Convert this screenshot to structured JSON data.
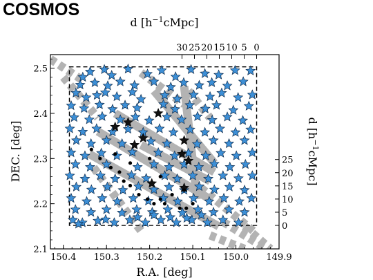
{
  "chart_data": {
    "type": "scatter",
    "title": "COSMOS",
    "xlabel": "R.A. [deg]",
    "ylabel": "DEC. [deg]",
    "top_xlabel": "d [h⁻¹cMpc]",
    "right_ylabel": "d [h⁻¹cMpc]",
    "xlim": [
      150.43,
      149.9
    ],
    "ylim": [
      2.1,
      2.53
    ],
    "xticks": [
      150.4,
      150.3,
      150.2,
      150.1,
      150.0,
      149.9
    ],
    "xtick_labels": [
      "150.4",
      "150.3",
      "150.2",
      "150.1",
      "150.0",
      "149.9"
    ],
    "yticks": [
      2.1,
      2.2,
      2.3,
      2.4,
      2.5
    ],
    "ytick_labels": [
      "2.1",
      "2.2",
      "2.3",
      "2.4",
      "2.5"
    ],
    "top_ticks_mpc": [
      30,
      25,
      20,
      15,
      10,
      5,
      0
    ],
    "top_tick_labels": [
      "30",
      "25",
      "20",
      "15",
      "10",
      "5",
      "0"
    ],
    "right_ticks_mpc": [
      0,
      5,
      10,
      15,
      20,
      25
    ],
    "right_tick_labels": [
      "0",
      "5",
      "10",
      "15",
      "20",
      "25"
    ],
    "mpc_per_deg_x": 173.4,
    "mpc_per_deg_y": 171.4,
    "mpc_zero_ra": 149.952,
    "mpc_zero_dec": 2.152,
    "survey_box": {
      "ra": [
        150.386,
        149.952
      ],
      "dec": [
        2.152,
        2.503
      ]
    },
    "filaments": [
      {
        "ra": [
          150.34,
          150.04
        ],
        "dec": [
          2.31,
          2.15
        ],
        "style": "solid"
      },
      {
        "ra": [
          150.32,
          150.06
        ],
        "dec": [
          2.36,
          2.21
        ],
        "style": "solid"
      },
      {
        "ra": [
          150.28,
          150.05
        ],
        "dec": [
          2.4,
          2.27
        ],
        "style": "solid"
      },
      {
        "ra": [
          150.22,
          150.06
        ],
        "dec": [
          2.33,
          2.25
        ],
        "style": "solid"
      },
      {
        "ra": [
          150.19,
          150.05
        ],
        "dec": [
          2.45,
          2.29
        ],
        "style": "solid"
      },
      {
        "ra": [
          150.12,
          150.09
        ],
        "dec": [
          2.46,
          2.21
        ],
        "style": "solid"
      },
      {
        "ra": [
          150.43,
          150.35
        ],
        "dec": [
          2.52,
          2.47
        ],
        "style": "dashed"
      },
      {
        "ra": [
          150.4,
          150.32
        ],
        "dec": [
          2.48,
          2.39
        ],
        "style": "dashed"
      },
      {
        "ra": [
          150.33,
          150.22
        ],
        "dec": [
          2.28,
          2.14
        ],
        "style": "dashed"
      },
      {
        "ra": [
          150.22,
          150.12
        ],
        "dec": [
          2.49,
          2.42
        ],
        "style": "dashed"
      },
      {
        "ra": [
          150.1,
          149.96
        ],
        "dec": [
          2.25,
          2.14
        ],
        "style": "dashed"
      },
      {
        "ra": [
          150.03,
          149.93
        ],
        "dec": [
          2.16,
          2.1
        ],
        "style": "dashed"
      },
      {
        "ra": [
          149.98,
          149.92
        ],
        "dec": [
          2.15,
          2.1
        ],
        "style": "dashed"
      },
      {
        "ra": [
          150.06,
          149.98
        ],
        "dec": [
          2.13,
          2.1
        ],
        "style": "dashed"
      },
      {
        "ra": [
          150.11,
          150.06
        ],
        "dec": [
          2.45,
          2.39
        ],
        "style": "dashed"
      }
    ],
    "black_points": [
      [
        150.335,
        2.32
      ],
      [
        150.315,
        2.3
      ],
      [
        150.29,
        2.28
      ],
      [
        150.27,
        2.27
      ],
      [
        150.26,
        2.25
      ],
      [
        150.245,
        2.24
      ],
      [
        150.225,
        2.22
      ],
      [
        150.205,
        2.21
      ],
      [
        150.19,
        2.2
      ],
      [
        150.175,
        2.21
      ],
      [
        150.165,
        2.2
      ],
      [
        150.148,
        2.22
      ],
      [
        150.13,
        2.19
      ],
      [
        150.115,
        2.19
      ],
      [
        150.1,
        2.2
      ],
      [
        150.12,
        2.23
      ],
      [
        150.175,
        2.26
      ],
      [
        150.2,
        2.3
      ],
      [
        150.245,
        2.29
      ],
      [
        150.28,
        2.31
      ]
    ],
    "black_stars": [
      [
        150.25,
        2.38
      ],
      [
        150.215,
        2.345
      ],
      [
        150.235,
        2.33
      ],
      [
        150.12,
        2.34
      ],
      [
        150.125,
        2.31
      ],
      [
        150.11,
        2.295
      ],
      [
        150.195,
        2.245
      ],
      [
        150.12,
        2.235
      ],
      [
        150.28,
        2.37
      ],
      [
        150.18,
        2.4
      ]
    ],
    "blue_stars": [
      [
        150.355,
        2.48
      ],
      [
        150.338,
        2.492
      ],
      [
        150.305,
        2.497
      ],
      [
        150.288,
        2.484
      ],
      [
        150.25,
        2.498
      ],
      [
        150.205,
        2.487
      ],
      [
        150.172,
        2.495
      ],
      [
        150.14,
        2.481
      ],
      [
        150.104,
        2.497
      ],
      [
        150.072,
        2.488
      ],
      [
        150.04,
        2.485
      ],
      [
        150.002,
        2.495
      ],
      [
        149.966,
        2.494
      ],
      [
        150.361,
        2.463
      ],
      [
        150.327,
        2.468
      ],
      [
        150.297,
        2.461
      ],
      [
        150.268,
        2.47
      ],
      [
        150.235,
        2.462
      ],
      [
        150.19,
        2.47
      ],
      [
        150.151,
        2.458
      ],
      [
        150.121,
        2.468
      ],
      [
        150.085,
        2.462
      ],
      [
        150.056,
        2.468
      ],
      [
        150.02,
        2.461
      ],
      [
        149.983,
        2.47
      ],
      [
        150.371,
        2.445
      ],
      [
        150.347,
        2.435
      ],
      [
        150.322,
        2.44
      ],
      [
        150.303,
        2.446
      ],
      [
        150.276,
        2.437
      ],
      [
        150.24,
        2.447
      ],
      [
        150.22,
        2.431
      ],
      [
        150.165,
        2.44
      ],
      [
        150.136,
        2.432
      ],
      [
        150.098,
        2.441
      ],
      [
        150.06,
        2.437
      ],
      [
        150.033,
        2.445
      ],
      [
        149.995,
        2.435
      ],
      [
        149.962,
        2.441
      ],
      [
        150.382,
        2.417
      ],
      [
        150.352,
        2.411
      ],
      [
        150.316,
        2.419
      ],
      [
        150.286,
        2.409
      ],
      [
        150.257,
        2.418
      ],
      [
        150.229,
        2.412
      ],
      [
        150.168,
        2.42
      ],
      [
        150.141,
        2.409
      ],
      [
        150.107,
        2.418
      ],
      [
        150.071,
        2.41
      ],
      [
        150.045,
        2.418
      ],
      [
        150.006,
        2.407
      ],
      [
        149.97,
        2.416
      ],
      [
        150.375,
        2.391
      ],
      [
        150.34,
        2.386
      ],
      [
        150.31,
        2.393
      ],
      [
        150.268,
        2.386
      ],
      [
        150.233,
        2.392
      ],
      [
        150.201,
        2.384
      ],
      [
        150.16,
        2.392
      ],
      [
        150.126,
        2.386
      ],
      [
        150.089,
        2.393
      ],
      [
        150.055,
        2.385
      ],
      [
        150.02,
        2.392
      ],
      [
        149.984,
        2.384
      ],
      [
        150.385,
        2.366
      ],
      [
        150.355,
        2.359
      ],
      [
        150.323,
        2.366
      ],
      [
        150.286,
        2.359
      ],
      [
        150.25,
        2.365
      ],
      [
        150.215,
        2.358
      ],
      [
        150.177,
        2.366
      ],
      [
        150.145,
        2.358
      ],
      [
        150.106,
        2.364
      ],
      [
        150.072,
        2.358
      ],
      [
        150.037,
        2.366
      ],
      [
        150.001,
        2.358
      ],
      [
        149.966,
        2.364
      ],
      [
        150.37,
        2.34
      ],
      [
        150.336,
        2.333
      ],
      [
        150.3,
        2.34
      ],
      [
        150.264,
        2.333
      ],
      [
        150.197,
        2.338
      ],
      [
        150.16,
        2.333
      ],
      [
        150.09,
        2.332
      ],
      [
        150.052,
        2.34
      ],
      [
        150.016,
        2.333
      ],
      [
        149.98,
        2.34
      ],
      [
        150.382,
        2.313
      ],
      [
        150.35,
        2.306
      ],
      [
        150.312,
        2.312
      ],
      [
        150.276,
        2.306
      ],
      [
        150.24,
        2.314
      ],
      [
        150.18,
        2.313
      ],
      [
        150.142,
        2.306
      ],
      [
        150.11,
        2.312
      ],
      [
        150.07,
        2.306
      ],
      [
        150.035,
        2.312
      ],
      [
        149.999,
        2.306
      ],
      [
        149.962,
        2.313
      ],
      [
        150.372,
        2.287
      ],
      [
        150.338,
        2.281
      ],
      [
        150.3,
        2.287
      ],
      [
        150.228,
        2.281
      ],
      [
        150.19,
        2.287
      ],
      [
        150.155,
        2.281
      ],
      [
        150.12,
        2.287
      ],
      [
        150.086,
        2.281
      ],
      [
        150.05,
        2.288
      ],
      [
        150.014,
        2.281
      ],
      [
        149.978,
        2.287
      ],
      [
        150.385,
        2.262
      ],
      [
        150.35,
        2.255
      ],
      [
        150.314,
        2.262
      ],
      [
        150.28,
        2.255
      ],
      [
        150.242,
        2.263
      ],
      [
        150.208,
        2.256
      ],
      [
        150.165,
        2.262
      ],
      [
        150.136,
        2.255
      ],
      [
        150.1,
        2.262
      ],
      [
        150.064,
        2.255
      ],
      [
        150.03,
        2.262
      ],
      [
        149.994,
        2.256
      ],
      [
        149.962,
        2.262
      ],
      [
        150.37,
        2.237
      ],
      [
        150.335,
        2.231
      ],
      [
        150.298,
        2.237
      ],
      [
        150.262,
        2.23
      ],
      [
        150.226,
        2.238
      ],
      [
        150.19,
        2.231
      ],
      [
        150.155,
        2.237
      ],
      [
        150.12,
        2.23
      ],
      [
        150.085,
        2.238
      ],
      [
        150.05,
        2.231
      ],
      [
        150.015,
        2.237
      ],
      [
        149.98,
        2.23
      ],
      [
        150.382,
        2.212
      ],
      [
        150.346,
        2.205
      ],
      [
        150.31,
        2.212
      ],
      [
        150.275,
        2.205
      ],
      [
        150.238,
        2.212
      ],
      [
        150.203,
        2.206
      ],
      [
        150.168,
        2.212
      ],
      [
        150.135,
        2.205
      ],
      [
        150.098,
        2.212
      ],
      [
        150.062,
        2.205
      ],
      [
        150.028,
        2.212
      ],
      [
        149.992,
        2.205
      ],
      [
        149.964,
        2.212
      ],
      [
        150.372,
        2.187
      ],
      [
        150.336,
        2.181
      ],
      [
        150.3,
        2.187
      ],
      [
        150.264,
        2.18
      ],
      [
        150.23,
        2.187
      ],
      [
        150.194,
        2.181
      ],
      [
        150.158,
        2.187
      ],
      [
        150.124,
        2.18
      ],
      [
        150.088,
        2.187
      ],
      [
        150.052,
        2.181
      ],
      [
        150.016,
        2.187
      ],
      [
        149.98,
        2.181
      ],
      [
        150.378,
        2.164
      ],
      [
        150.356,
        2.158
      ],
      [
        150.32,
        2.162
      ],
      [
        150.282,
        2.158
      ],
      [
        150.246,
        2.164
      ],
      [
        150.21,
        2.158
      ],
      [
        150.174,
        2.164
      ],
      [
        150.138,
        2.158
      ],
      [
        150.102,
        2.164
      ],
      [
        150.066,
        2.158
      ],
      [
        150.03,
        2.164
      ],
      [
        149.994,
        2.158
      ],
      [
        150.365,
        2.155
      ],
      [
        150.302,
        2.165
      ],
      [
        150.228,
        2.17
      ],
      [
        150.19,
        2.175
      ],
      [
        150.152,
        2.17
      ],
      [
        150.114,
        2.168
      ],
      [
        150.08,
        2.175
      ]
    ]
  }
}
